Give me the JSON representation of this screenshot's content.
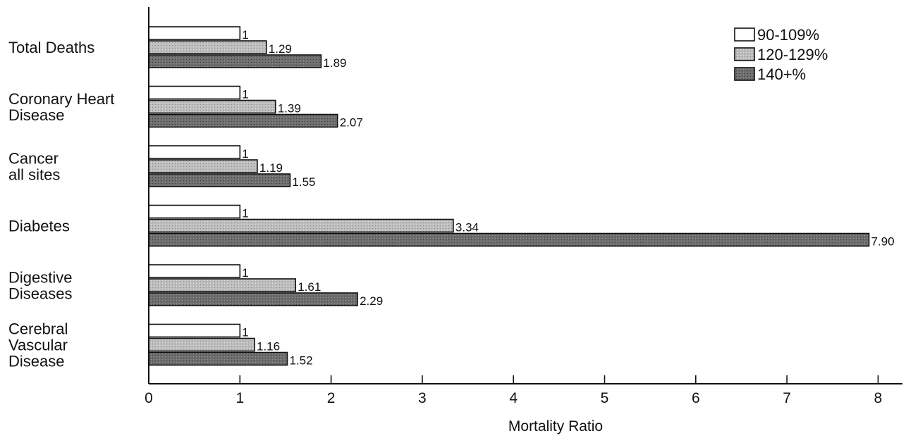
{
  "chart_data": {
    "type": "bar",
    "orientation": "horizontal",
    "title": "",
    "xlabel": "Mortality Ratio",
    "ylabel": "",
    "xlim": [
      0,
      8.3
    ],
    "xticks": [
      0,
      1,
      2,
      3,
      4,
      5,
      6,
      7,
      8
    ],
    "grid": false,
    "legend_position": "top-right",
    "categories": [
      [
        "Total Deaths"
      ],
      [
        "Coronary Heart",
        "Disease"
      ],
      [
        "Cancer",
        "all sites"
      ],
      [
        "Diabetes"
      ],
      [
        "Digestive",
        "Diseases"
      ],
      [
        "Cerebral",
        "Vascular",
        "Disease"
      ]
    ],
    "series": [
      {
        "name": "90-109%",
        "color": "#ffffff",
        "values": [
          1,
          1,
          1,
          1,
          1,
          1
        ],
        "labels": [
          "1",
          "1",
          "1",
          "1",
          "1",
          "1"
        ]
      },
      {
        "name": "120-129%",
        "color": "#b8b8b8",
        "values": [
          1.29,
          1.39,
          1.19,
          3.34,
          1.61,
          1.16
        ],
        "labels": [
          "1.29",
          "1.39",
          "1.19",
          "3.34",
          "1.61",
          "1.16"
        ]
      },
      {
        "name": "140+%",
        "color": "#6a6a6a",
        "values": [
          1.89,
          2.07,
          1.55,
          7.9,
          2.29,
          1.52
        ],
        "labels": [
          "1.89",
          "2.07",
          "1.55",
          "7.90",
          "2.29",
          "1.52"
        ]
      }
    ]
  }
}
